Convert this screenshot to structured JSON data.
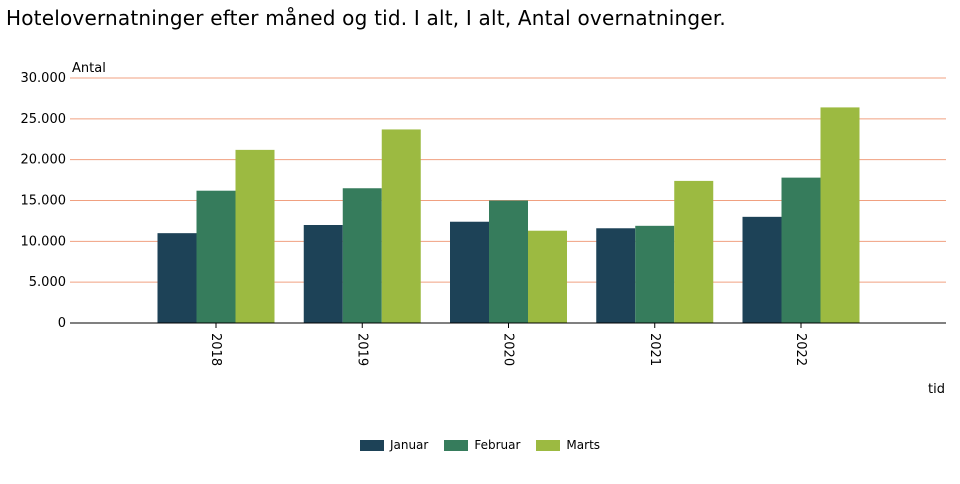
{
  "title": "Hotelovernatninger efter måned og tid. I alt, I alt, Antal overnatninger.",
  "chart_data": {
    "type": "bar",
    "title": "Hotelovernatninger efter måned og tid. I alt, I alt, Antal overnatninger.",
    "xlabel": "tid",
    "ylabel": "Antal",
    "categories": [
      "2018",
      "2019",
      "2020",
      "2021",
      "2022"
    ],
    "ylim": [
      0,
      30000
    ],
    "yticks": [
      "0",
      "5.000",
      "10.000",
      "15.000",
      "20.000",
      "25.000",
      "30.000"
    ],
    "grid": true,
    "legend_position": "bottom",
    "series": [
      {
        "name": "Januar",
        "color": "#1d4257",
        "values": [
          11000,
          12000,
          12400,
          11600,
          13000
        ]
      },
      {
        "name": "Februar",
        "color": "#367c5c",
        "values": [
          16200,
          16500,
          15000,
          11900,
          17800
        ]
      },
      {
        "name": "Marts",
        "color": "#9cba41",
        "values": [
          21200,
          23700,
          11300,
          17400,
          26400
        ]
      }
    ]
  }
}
